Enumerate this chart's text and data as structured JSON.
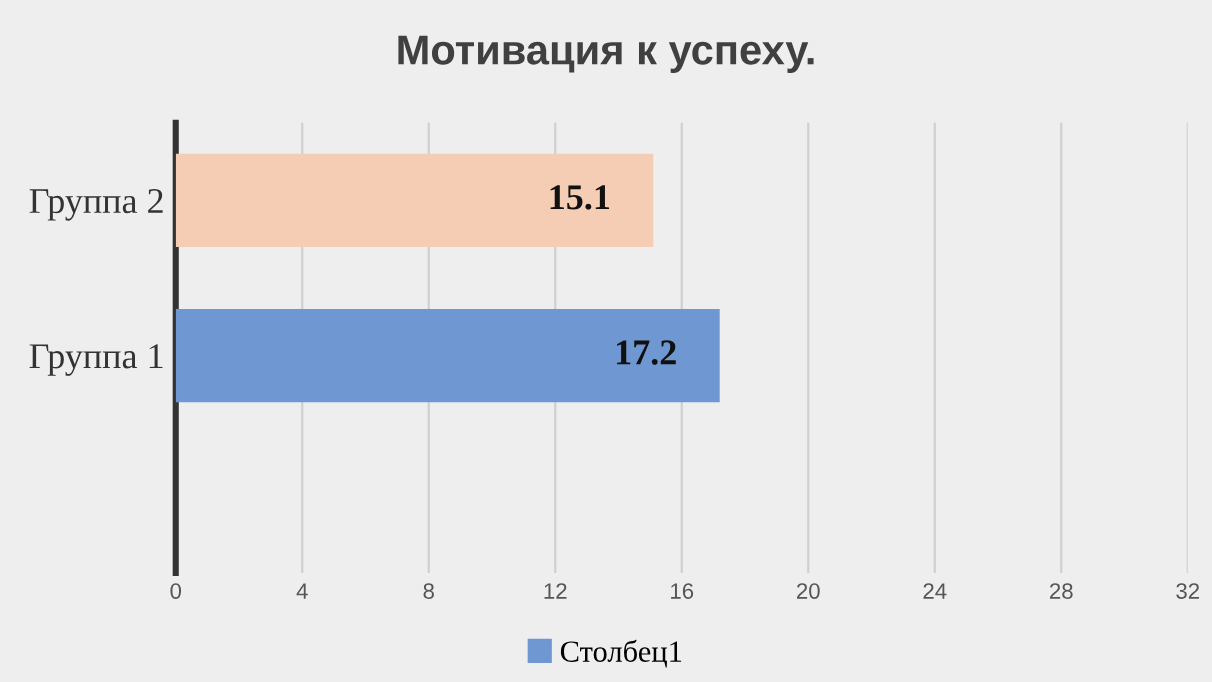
{
  "chart_data": {
    "type": "bar",
    "orientation": "horizontal",
    "title": "Мотивация к успеху.",
    "categories": [
      "Группа 2",
      "Группа 1"
    ],
    "series": [
      {
        "name": "Столбец1",
        "color": "#6f97d2",
        "colors": [
          "#f5cdb4",
          "#6f97d2"
        ],
        "values": [
          15.1,
          17.2
        ]
      }
    ],
    "xlim": [
      0,
      32
    ],
    "xticks": [
      0,
      4,
      8,
      12,
      16,
      20,
      24,
      28,
      32
    ],
    "grid": "x",
    "legend": "bottom",
    "data_labels": true
  }
}
